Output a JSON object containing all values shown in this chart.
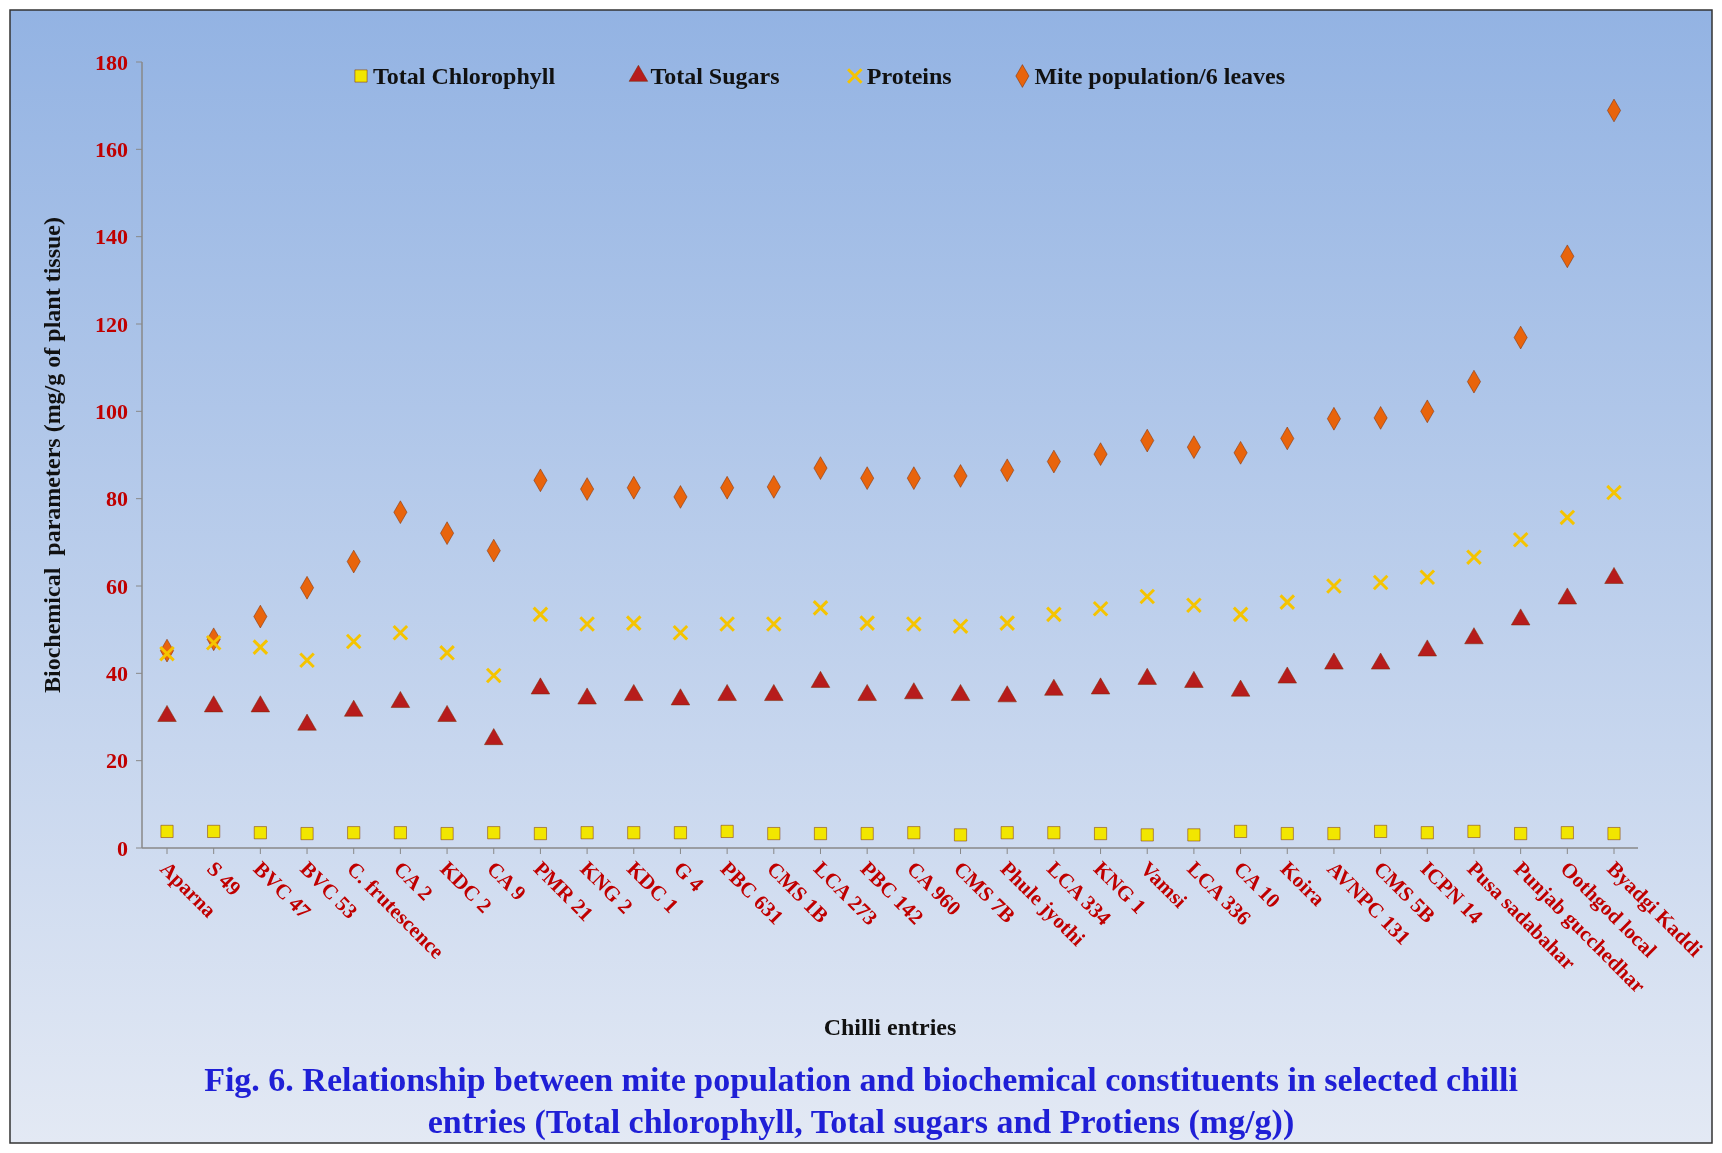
{
  "chart_data": {
    "type": "scatter",
    "title": "Fig. 6. Relationship between mite population and biochemical constituents in selected chilli entries (Total chlorophyll, Total sugars and Protiens (mg/g))",
    "xlabel": "Chilli entries",
    "ylabel": "Biochemical  parameters (mg/g of plant tissue)",
    "categories": [
      "Aparna",
      "S 49",
      "BVC 47",
      "BVC 53",
      "C. frutescence",
      "CA 2",
      "KDC 2",
      "CA 9",
      "PMR 21",
      "KNG 2",
      "KDC 1",
      "G 4",
      "PBC 631",
      "CMS 1B",
      "LCA 273",
      "PBC 142",
      "CA 960",
      "CMS 7B",
      "Phule jyothi",
      "LCA 334",
      "KNG 1",
      "Vamsi",
      "LCA 336",
      "CA 10",
      "Koira",
      "AVNPC 131",
      "CMS 5B",
      "ICPN 14",
      "Pusa sadabahar",
      "Punjab gucchedhar",
      "Oothgod local",
      "Byadgi Kaddi"
    ],
    "ylim": [
      0,
      180
    ],
    "yticks": [
      0,
      20,
      40,
      60,
      80,
      100,
      120,
      140,
      160,
      180
    ],
    "grid": false,
    "legend": "top",
    "series": [
      {
        "name": "Total Chlorophyll",
        "color": "#f2e600",
        "marker": "square",
        "values": [
          3.8,
          3.8,
          3.5,
          3.3,
          3.5,
          3.5,
          3.3,
          3.5,
          3.3,
          3.5,
          3.5,
          3.5,
          3.8,
          3.3,
          3.3,
          3.3,
          3.5,
          3,
          3.5,
          3.5,
          3.3,
          3,
          3,
          3.8,
          3.3,
          3.3,
          3.8,
          3.5,
          3.8,
          3.3,
          3.5,
          3.3
        ]
      },
      {
        "name": "Total Sugars",
        "color": "#b71c1c",
        "marker": "triangle",
        "values": [
          30.2,
          32.4,
          32.4,
          28.2,
          31.4,
          33.4,
          30.2,
          24.9,
          36.5,
          34.2,
          35,
          34,
          35,
          35,
          38,
          35,
          35.4,
          35,
          34.7,
          36.2,
          36.5,
          38.7,
          38,
          36,
          39,
          42.2,
          42.2,
          45.2,
          48,
          52.3,
          57.1,
          61.8
        ]
      },
      {
        "name": "Proteins",
        "color": "#f5c400",
        "marker": "cross",
        "values": [
          44.5,
          47,
          46,
          43,
          47.3,
          49.3,
          44.7,
          39.5,
          53.5,
          51.3,
          51.5,
          49.3,
          51.3,
          51.3,
          55,
          51.5,
          51.3,
          50.8,
          51.5,
          53.5,
          54.8,
          57.6,
          55.6,
          53.5,
          56.3,
          60,
          60.8,
          62,
          66.6,
          70.6,
          75.7,
          81.4
        ]
      },
      {
        "name": "Mite population/6 leaves",
        "color": "#e8640c",
        "marker": "diamond",
        "values": [
          45.2,
          47.8,
          53,
          59.6,
          65.6,
          76.9,
          72.1,
          68.1,
          84.2,
          82.2,
          82.5,
          80.4,
          82.5,
          82.7,
          87,
          84.7,
          84.7,
          85.2,
          86.5,
          88.5,
          90.2,
          93.3,
          91.8,
          90.5,
          93.8,
          98.3,
          98.5,
          100,
          106.8,
          116.9,
          135.5,
          168.9
        ]
      }
    ]
  }
}
